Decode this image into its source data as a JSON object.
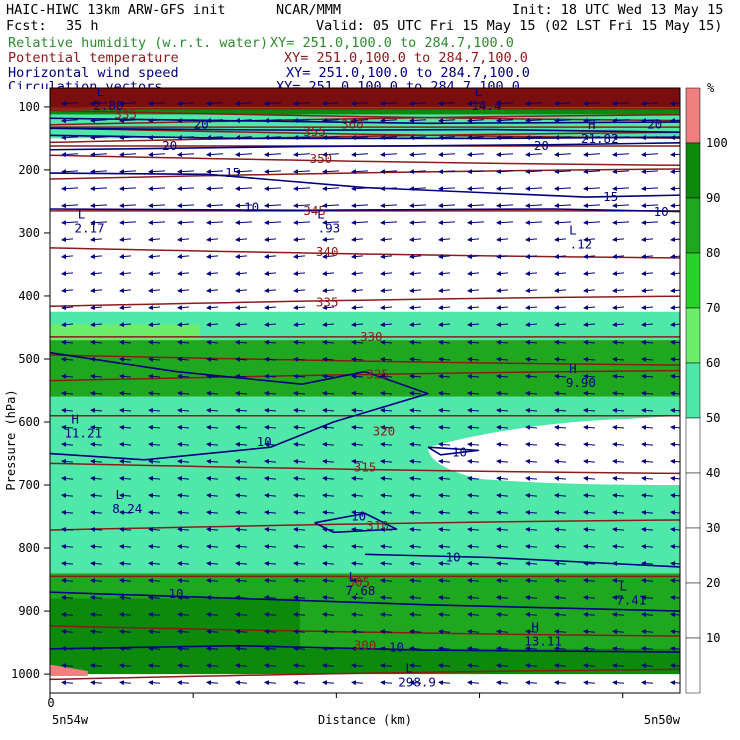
{
  "header": {
    "model": "HAIC-HIWC 13km ARW-GFS init",
    "org": "NCAR/MMM",
    "init": "Init: 18 UTC Wed 13 May 15",
    "fcst_label": "Fcst:",
    "fcst_value": "35 h",
    "valid": "Valid: 05 UTC Fri 15 May 15 (02 LST Fri 15 May 15)",
    "fields": [
      {
        "name": "Relative humidity (w.r.t. water)",
        "xy": "XY= 251.0,100.0 to 284.7,100.0",
        "color": "#2e8b2e"
      },
      {
        "name": "Potential temperature",
        "xy": "XY= 251.0,100.0 to 284.7,100.0",
        "color": "#8b1a1a"
      },
      {
        "name": "Horizontal wind speed",
        "xy": "XY= 251.0,100.0 to 284.7,100.0",
        "color": "#000080"
      },
      {
        "name": "Circulation vectors",
        "xy": "XY= 251.0,100.0 to 284.7,100.0",
        "color": "#000080"
      }
    ]
  },
  "chart_data": {
    "type": "cross-section",
    "ylabel": "Pressure (hPa)",
    "xlabel": "Distance (km)",
    "x_left_label": "5n54w",
    "x_right_label": "5n50w",
    "x_zero_label": "0",
    "y_ticks": [
      100,
      200,
      300,
      400,
      500,
      600,
      700,
      800,
      900,
      1000
    ],
    "y_range": [
      70,
      1030
    ],
    "y_scale": "linear",
    "colorbar": {
      "unit": "%",
      "levels": [
        10,
        20,
        30,
        40,
        50,
        60,
        70,
        80,
        90,
        100
      ],
      "colors": [
        "#ffffff",
        "#ffffff",
        "#ffffff",
        "#ffffff",
        "#ffffff",
        "#50e8a8",
        "#6cee6c",
        "#28d228",
        "#1fa81f",
        "#0c8a0c",
        "#f08080"
      ]
    },
    "theta_labels": [
      {
        "text": "335",
        "x": 0.12,
        "p": 112
      },
      {
        "text": "360",
        "x": 0.48,
        "p": 128
      },
      {
        "text": "355",
        "x": 0.42,
        "p": 140
      },
      {
        "text": "350",
        "x": 0.43,
        "p": 183
      },
      {
        "text": "345",
        "x": 0.42,
        "p": 265
      },
      {
        "text": "340",
        "x": 0.44,
        "p": 330
      },
      {
        "text": "335",
        "x": 0.44,
        "p": 410
      },
      {
        "text": "330",
        "x": 0.51,
        "p": 465
      },
      {
        "text": "325",
        "x": 0.52,
        "p": 525
      },
      {
        "text": "320",
        "x": 0.53,
        "p": 615
      },
      {
        "text": "315",
        "x": 0.5,
        "p": 672
      },
      {
        "text": "310",
        "x": 0.52,
        "p": 765
      },
      {
        "text": "305",
        "x": 0.49,
        "p": 855
      },
      {
        "text": "300",
        "x": 0.5,
        "p": 955
      }
    ],
    "wind_labels": [
      {
        "text": "20",
        "x": 0.24,
        "p": 128
      },
      {
        "text": "20",
        "x": 0.96,
        "p": 128
      },
      {
        "text": "20",
        "x": 0.19,
        "p": 162
      },
      {
        "text": "20",
        "x": 0.78,
        "p": 162
      },
      {
        "text": "15",
        "x": 0.29,
        "p": 205
      },
      {
        "text": "15",
        "x": 0.89,
        "p": 243
      },
      {
        "text": "10",
        "x": 0.32,
        "p": 260
      },
      {
        "text": "10",
        "x": 0.97,
        "p": 267
      },
      {
        "text": "10",
        "x": 0.34,
        "p": 632
      },
      {
        "text": "10",
        "x": 0.65,
        "p": 648
      },
      {
        "text": "10",
        "x": 0.49,
        "p": 750
      },
      {
        "text": "10",
        "x": 0.64,
        "p": 815
      },
      {
        "text": "10",
        "x": 0.2,
        "p": 873
      },
      {
        "text": "10",
        "x": 0.55,
        "p": 958
      }
    ],
    "extrema": [
      {
        "type": "L",
        "value": "2.80",
        "x": 0.08,
        "p": 95
      },
      {
        "type": "L",
        "value": "14.4",
        "x": 0.68,
        "p": 95
      },
      {
        "type": "H",
        "value": "21.82",
        "x": 0.86,
        "p": 148
      },
      {
        "type": "L",
        "value": "2.17",
        "x": 0.05,
        "p": 290
      },
      {
        "type": "L",
        "value": ".93",
        "x": 0.43,
        "p": 290
      },
      {
        "type": "L",
        "value": ".12",
        "x": 0.83,
        "p": 315
      },
      {
        "type": "H",
        "value": "9.90",
        "x": 0.83,
        "p": 535
      },
      {
        "type": "H",
        "value": "11.21",
        "x": 0.04,
        "p": 615
      },
      {
        "type": "L",
        "value": "8.24",
        "x": 0.11,
        "p": 735
      },
      {
        "type": "L",
        "value": "7.68",
        "x": 0.48,
        "p": 865
      },
      {
        "type": "L",
        "value": "7.41",
        "x": 0.91,
        "p": 880
      },
      {
        "type": "H",
        "value": "13.11",
        "x": 0.77,
        "p": 945
      },
      {
        "type": "L",
        "value": "298.9",
        "x": 0.57,
        "p": 1010
      }
    ]
  }
}
